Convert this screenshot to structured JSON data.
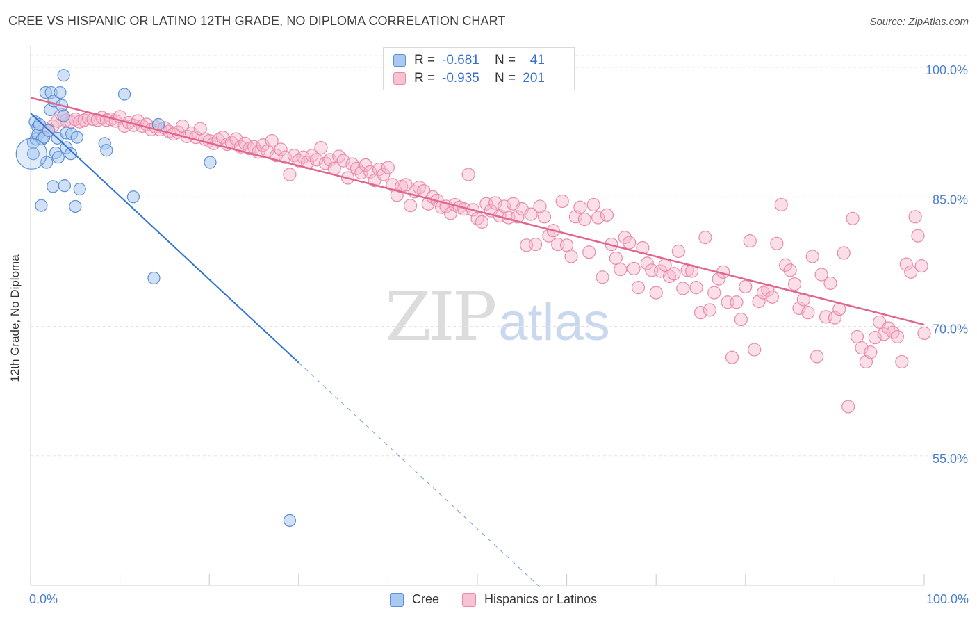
{
  "header": {
    "title": "CREE VS HISPANIC OR LATINO 12TH GRADE, NO DIPLOMA CORRELATION CHART",
    "source": "Source: ZipAtlas.com"
  },
  "legend_top": {
    "rows": [
      {
        "r_label": "R =",
        "r_value": "-0.681",
        "n_label": "N =",
        "n_value": "41"
      },
      {
        "r_label": "R =",
        "r_value": "-0.935",
        "n_label": "N =",
        "n_value": "201"
      }
    ]
  },
  "legend_bottom": {
    "series1": "Cree",
    "series2": "Hispanics or Latinos"
  },
  "watermark": {
    "zip": "ZIP",
    "atlas": "atlas"
  },
  "colors": {
    "cree_fill": "#aac8f0",
    "cree_stroke": "#5b8fd6",
    "cree_line": "#2e72d2",
    "hisp_fill": "#f7b8cc",
    "hisp_stroke": "#e88aa8",
    "hisp_line": "#e0668f",
    "grid": "#e3e3e3",
    "tick_label": "#4a7fd0"
  },
  "chart_data": {
    "type": "scatter",
    "title": "CREE VS HISPANIC OR LATINO 12TH GRADE, NO DIPLOMA CORRELATION CHART",
    "xlabel": "",
    "ylabel": "12th Grade, No Diploma",
    "xlim": [
      0,
      100
    ],
    "ylim": [
      40,
      102.5
    ],
    "x_tick_labels": [
      "0.0%",
      "100.0%"
    ],
    "y_ticks": [
      55,
      70,
      85,
      100
    ],
    "y_tick_labels": [
      "55.0%",
      "70.0%",
      "85.0%",
      "100.0%"
    ],
    "grid": true,
    "legend_position": "top-center",
    "series": [
      {
        "name": "Cree",
        "r": -0.681,
        "n": 41,
        "trend": {
          "x0": 0,
          "y0": 94.7,
          "x1": 30,
          "y1": 65.8,
          "dashed_to_x": 57
        },
        "points": [
          [
            0.3,
            91.3
          ],
          [
            0.3,
            90.0
          ],
          [
            0.5,
            93.7
          ],
          [
            0.6,
            91.7
          ],
          [
            0.8,
            93.1
          ],
          [
            0.8,
            92.2
          ],
          [
            1.0,
            93.4
          ],
          [
            1.2,
            84.0
          ],
          [
            1.3,
            91.7
          ],
          [
            1.5,
            91.9
          ],
          [
            1.7,
            97.1
          ],
          [
            1.8,
            89.0
          ],
          [
            2.0,
            92.7
          ],
          [
            2.2,
            95.1
          ],
          [
            2.3,
            97.1
          ],
          [
            2.5,
            86.2
          ],
          [
            2.6,
            96.1
          ],
          [
            2.8,
            90.1
          ],
          [
            3.0,
            91.8
          ],
          [
            3.1,
            89.6
          ],
          [
            3.3,
            97.1
          ],
          [
            3.5,
            95.6
          ],
          [
            3.7,
            99.1
          ],
          [
            3.7,
            94.4
          ],
          [
            3.8,
            86.3
          ],
          [
            4.0,
            92.4
          ],
          [
            4.0,
            90.7
          ],
          [
            4.5,
            90.0
          ],
          [
            4.6,
            92.3
          ],
          [
            5.0,
            83.9
          ],
          [
            5.2,
            91.9
          ],
          [
            5.5,
            85.9
          ],
          [
            8.3,
            91.2
          ],
          [
            8.5,
            90.4
          ],
          [
            10.5,
            96.9
          ],
          [
            11.5,
            85.0
          ],
          [
            13.8,
            75.6
          ],
          [
            14.3,
            93.4
          ],
          [
            20.1,
            89.0
          ],
          [
            29.0,
            47.5
          ],
          [
            0.1,
            90.0
          ]
        ]
      },
      {
        "name": "Hispanics or Latinos",
        "r": -0.935,
        "n": 201,
        "trend": {
          "x0": 0,
          "y0": 96.5,
          "x1": 100,
          "y1": 70.2
        },
        "points": [
          [
            1.5,
            93.0
          ],
          [
            2.0,
            92.7
          ],
          [
            2.5,
            93.2
          ],
          [
            3.0,
            93.8
          ],
          [
            3.5,
            94.5
          ],
          [
            4.0,
            93.9
          ],
          [
            4.5,
            93.7
          ],
          [
            5.0,
            94.0
          ],
          [
            5.5,
            93.7
          ],
          [
            6.0,
            93.9
          ],
          [
            6.5,
            94.1
          ],
          [
            7.0,
            94.0
          ],
          [
            7.5,
            93.9
          ],
          [
            8.0,
            94.2
          ],
          [
            8.5,
            93.9
          ],
          [
            9.0,
            94.0
          ],
          [
            9.5,
            93.8
          ],
          [
            10.0,
            94.3
          ],
          [
            10.5,
            93.2
          ],
          [
            11.0,
            93.6
          ],
          [
            11.5,
            93.3
          ],
          [
            12.0,
            93.8
          ],
          [
            12.5,
            93.2
          ],
          [
            13.0,
            93.4
          ],
          [
            13.5,
            92.8
          ],
          [
            14.0,
            93.1
          ],
          [
            14.5,
            92.8
          ],
          [
            15.0,
            93.0
          ],
          [
            15.5,
            92.6
          ],
          [
            16.0,
            92.3
          ],
          [
            16.5,
            92.5
          ],
          [
            17.0,
            93.2
          ],
          [
            17.5,
            92.0
          ],
          [
            18.0,
            92.4
          ],
          [
            18.5,
            91.9
          ],
          [
            19.0,
            92.9
          ],
          [
            19.5,
            91.7
          ],
          [
            20.0,
            91.5
          ],
          [
            20.5,
            91.2
          ],
          [
            21.0,
            91.6
          ],
          [
            21.5,
            91.9
          ],
          [
            22.0,
            91.1
          ],
          [
            22.5,
            91.3
          ],
          [
            23.0,
            91.7
          ],
          [
            23.5,
            90.8
          ],
          [
            24.0,
            91.2
          ],
          [
            24.5,
            90.6
          ],
          [
            25.0,
            90.8
          ],
          [
            25.5,
            90.2
          ],
          [
            26.0,
            91.0
          ],
          [
            26.5,
            90.3
          ],
          [
            27.0,
            91.5
          ],
          [
            27.5,
            89.8
          ],
          [
            28.0,
            90.5
          ],
          [
            28.5,
            89.6
          ],
          [
            29.0,
            87.6
          ],
          [
            29.5,
            89.8
          ],
          [
            30.0,
            89.2
          ],
          [
            30.5,
            89.6
          ],
          [
            31.0,
            89.0
          ],
          [
            31.5,
            89.8
          ],
          [
            32.0,
            89.3
          ],
          [
            32.5,
            90.7
          ],
          [
            33.0,
            88.9
          ],
          [
            33.5,
            89.3
          ],
          [
            34.0,
            88.3
          ],
          [
            34.5,
            89.7
          ],
          [
            35.0,
            89.2
          ],
          [
            35.5,
            87.2
          ],
          [
            36.0,
            88.8
          ],
          [
            36.5,
            88.3
          ],
          [
            37.0,
            87.8
          ],
          [
            37.5,
            88.7
          ],
          [
            38.0,
            87.9
          ],
          [
            38.5,
            86.9
          ],
          [
            39.0,
            88.2
          ],
          [
            39.5,
            87.6
          ],
          [
            40.0,
            88.4
          ],
          [
            40.5,
            86.4
          ],
          [
            41.0,
            85.2
          ],
          [
            41.5,
            86.2
          ],
          [
            42.0,
            86.4
          ],
          [
            42.5,
            84.0
          ],
          [
            43.0,
            85.6
          ],
          [
            43.5,
            86.1
          ],
          [
            44.0,
            85.7
          ],
          [
            44.5,
            84.2
          ],
          [
            45.0,
            85.0
          ],
          [
            45.5,
            84.6
          ],
          [
            46.0,
            83.8
          ],
          [
            46.5,
            83.9
          ],
          [
            47.0,
            83.1
          ],
          [
            47.5,
            84.1
          ],
          [
            48.0,
            83.8
          ],
          [
            48.5,
            83.6
          ],
          [
            49.0,
            87.6
          ],
          [
            49.5,
            83.5
          ],
          [
            50.0,
            82.5
          ],
          [
            50.5,
            82.1
          ],
          [
            51.0,
            84.2
          ],
          [
            51.5,
            83.4
          ],
          [
            52.0,
            84.3
          ],
          [
            52.5,
            82.8
          ],
          [
            53.0,
            83.9
          ],
          [
            53.5,
            82.6
          ],
          [
            54.0,
            84.2
          ],
          [
            54.5,
            82.7
          ],
          [
            55.0,
            83.6
          ],
          [
            55.5,
            79.4
          ],
          [
            56.0,
            83.0
          ],
          [
            56.5,
            79.5
          ],
          [
            57.0,
            83.9
          ],
          [
            57.5,
            82.7
          ],
          [
            58.0,
            80.5
          ],
          [
            58.5,
            81.1
          ],
          [
            59.0,
            79.5
          ],
          [
            59.5,
            84.5
          ],
          [
            60.0,
            79.4
          ],
          [
            60.5,
            78.1
          ],
          [
            61.0,
            82.7
          ],
          [
            61.5,
            83.8
          ],
          [
            62.0,
            82.4
          ],
          [
            62.5,
            78.6
          ],
          [
            63.0,
            84.1
          ],
          [
            63.5,
            82.6
          ],
          [
            64.0,
            75.7
          ],
          [
            64.5,
            82.9
          ],
          [
            65.0,
            79.5
          ],
          [
            65.5,
            77.9
          ],
          [
            66.0,
            76.6
          ],
          [
            66.5,
            80.3
          ],
          [
            67.0,
            79.7
          ],
          [
            67.5,
            76.7
          ],
          [
            68.0,
            74.5
          ],
          [
            68.5,
            79.1
          ],
          [
            69.0,
            77.3
          ],
          [
            69.5,
            76.5
          ],
          [
            70.0,
            73.9
          ],
          [
            70.5,
            76.4
          ],
          [
            71.0,
            77.1
          ],
          [
            71.5,
            75.8
          ],
          [
            72.0,
            76.1
          ],
          [
            72.5,
            78.7
          ],
          [
            73.0,
            74.4
          ],
          [
            73.5,
            76.5
          ],
          [
            74.0,
            76.4
          ],
          [
            74.5,
            74.5
          ],
          [
            75.0,
            71.6
          ],
          [
            75.5,
            80.3
          ],
          [
            76.0,
            71.9
          ],
          [
            76.5,
            73.9
          ],
          [
            77.0,
            75.5
          ],
          [
            77.5,
            76.3
          ],
          [
            78.0,
            72.8
          ],
          [
            78.5,
            66.4
          ],
          [
            79.0,
            72.8
          ],
          [
            79.5,
            70.8
          ],
          [
            80.0,
            74.6
          ],
          [
            80.5,
            79.9
          ],
          [
            81.0,
            67.3
          ],
          [
            81.5,
            72.9
          ],
          [
            82.0,
            73.9
          ],
          [
            82.5,
            74.2
          ],
          [
            83.0,
            73.4
          ],
          [
            83.5,
            79.6
          ],
          [
            84.0,
            84.1
          ],
          [
            84.5,
            77.1
          ],
          [
            85.0,
            76.5
          ],
          [
            85.5,
            74.9
          ],
          [
            86.0,
            72.1
          ],
          [
            86.5,
            73.1
          ],
          [
            87.0,
            71.6
          ],
          [
            87.5,
            78.1
          ],
          [
            88.0,
            66.5
          ],
          [
            88.5,
            76.0
          ],
          [
            89.0,
            71.1
          ],
          [
            89.5,
            75.0
          ],
          [
            90.0,
            71.0
          ],
          [
            90.5,
            72.0
          ],
          [
            91.0,
            78.5
          ],
          [
            91.5,
            60.7
          ],
          [
            92.0,
            82.5
          ],
          [
            92.5,
            68.8
          ],
          [
            93.0,
            67.5
          ],
          [
            93.5,
            65.9
          ],
          [
            94.0,
            67.0
          ],
          [
            94.5,
            68.7
          ],
          [
            95.0,
            70.5
          ],
          [
            95.5,
            69.1
          ],
          [
            96.0,
            69.8
          ],
          [
            96.5,
            69.3
          ],
          [
            97.0,
            68.8
          ],
          [
            97.5,
            65.9
          ],
          [
            98.0,
            77.2
          ],
          [
            98.5,
            76.3
          ],
          [
            99.0,
            82.7
          ],
          [
            99.3,
            80.5
          ],
          [
            99.7,
            77.0
          ],
          [
            100.0,
            69.2
          ]
        ]
      }
    ]
  }
}
